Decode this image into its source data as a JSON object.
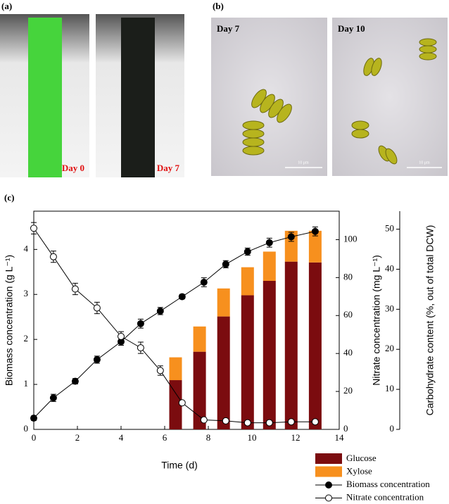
{
  "panels": {
    "a": "(a)",
    "b": "(b)",
    "c": "(c)"
  },
  "photos_a": [
    "Day 0",
    "Day 7"
  ],
  "photos_b": [
    "Day 7",
    "Day 10"
  ],
  "scale_bars": [
    "10 μm",
    "10 μm"
  ],
  "chart_data": {
    "type": "combo",
    "xlabel": "Time (d)",
    "ylabel": "Biomass concentration (g L⁻¹)",
    "y2label": "Nitrate concentration (mg L⁻¹)",
    "y3label": "Carbohydrate content (%, out of total DCW)",
    "xlim": [
      0,
      14
    ],
    "xticks": [
      0,
      2,
      4,
      6,
      8,
      10,
      12,
      14
    ],
    "ylim": [
      0,
      4.85
    ],
    "yticks": [
      0,
      1,
      2,
      3,
      4
    ],
    "y2lim": [
      0,
      115
    ],
    "y2ticks": [
      0,
      20,
      40,
      60,
      80,
      100
    ],
    "y3lim": [
      0,
      54.5
    ],
    "y3ticks": [
      0,
      10,
      20,
      30,
      40,
      50
    ],
    "series": [
      {
        "name": "Glucose",
        "kind": "bar",
        "axis": "y3",
        "color": "#7b0c0f",
        "x": [
          6.5,
          7.6,
          8.7,
          9.8,
          10.8,
          11.8,
          12.9
        ],
        "values": [
          12.3,
          19.4,
          28.2,
          33.5,
          37.1,
          41.9,
          41.7
        ]
      },
      {
        "name": "Xylose",
        "kind": "bar",
        "axis": "y3",
        "color": "#f7901e",
        "x": [
          6.5,
          7.6,
          8.7,
          9.8,
          10.8,
          11.8,
          12.9
        ],
        "values": [
          5.7,
          6.3,
          7.0,
          7.0,
          7.3,
          7.7,
          7.9
        ]
      },
      {
        "name": "Biomass concentration",
        "kind": "line",
        "axis": "y",
        "color": "#000000",
        "marker": "filled",
        "x": [
          0,
          0.9,
          1.9,
          2.9,
          4,
          4.9,
          5.8,
          6.8,
          7.8,
          8.8,
          9.8,
          10.8,
          11.8,
          12.9
        ],
        "values": [
          0.25,
          0.7,
          1.07,
          1.55,
          1.95,
          2.35,
          2.63,
          2.95,
          3.27,
          3.67,
          3.95,
          4.15,
          4.28,
          4.4
        ],
        "errors": [
          0.05,
          0.08,
          0.06,
          0.08,
          0.08,
          0.1,
          0.08,
          0.05,
          0.1,
          0.08,
          0.08,
          0.1,
          0.1,
          0.1
        ]
      },
      {
        "name": "Nitrate concentration",
        "kind": "line",
        "axis": "y2",
        "color": "#000000",
        "marker": "open",
        "x": [
          0,
          0.9,
          1.9,
          2.9,
          4,
          4.9,
          5.8,
          6.8,
          7.8,
          8.8,
          9.8,
          10.8,
          11.8,
          12.9
        ],
        "values": [
          106,
          91,
          74,
          64,
          49,
          43,
          31,
          14,
          5,
          4.5,
          3.5,
          3.5,
          4,
          4
        ],
        "errors": [
          3,
          3,
          3,
          3,
          2.5,
          3,
          2.5,
          1,
          1,
          1,
          1,
          1,
          1,
          1
        ]
      }
    ]
  }
}
